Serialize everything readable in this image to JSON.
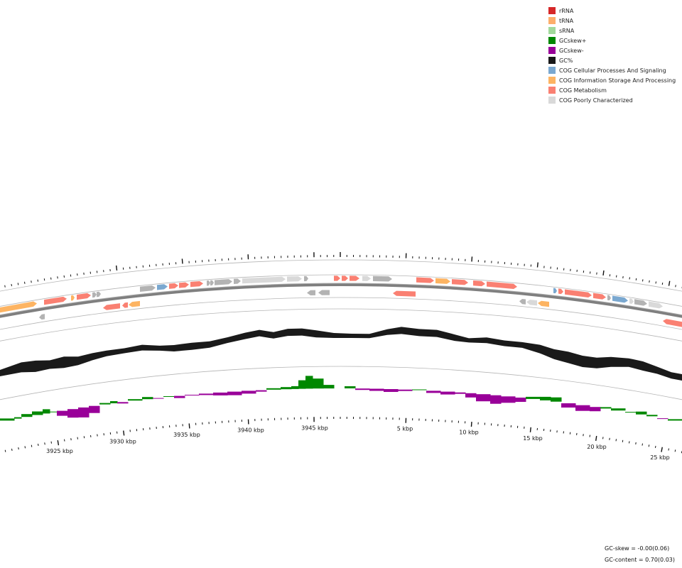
{
  "legend": [
    {
      "label": "rRNA",
      "color": "#d62728"
    },
    {
      "label": "tRNA",
      "color": "#fdae6b"
    },
    {
      "label": "sRNA",
      "color": "#a1d99b"
    },
    {
      "label": "GCskew+",
      "color": "#008800"
    },
    {
      "label": "GCskew-",
      "color": "#990099"
    },
    {
      "label": "GC%",
      "color": "#1a1a1a"
    },
    {
      "label": "COG Cellular Processes And Signaling",
      "color": "#7aa8d0"
    },
    {
      "label": "COG Information Storage And Processing",
      "color": "#fdb462"
    },
    {
      "label": "COG Metabolism",
      "color": "#fa8072"
    },
    {
      "label": "COG Poorly Characterized",
      "color": "#d9d9d9"
    }
  ],
  "axis": {
    "labels": [
      "3925 kbp",
      "3930 kbp",
      "3935 kbp",
      "3940 kbp",
      "3945 kbp",
      "5 kbp",
      "10 kbp",
      "15 kbp",
      "20 kbp",
      "25 kbp"
    ]
  },
  "stats": {
    "gc_skew": "GC-skew = -0.00(0.06)",
    "gc_content": "GC-content = 0.70(0.03)"
  },
  "colors": {
    "metabolism": "#fa8072",
    "info": "#fdb462",
    "cellular": "#7aa8d0",
    "poor": "#d9d9d9",
    "nocog": "#b3b3b3",
    "gc": "#1a1a1a",
    "skew_pos": "#008800",
    "skew_neg": "#990099",
    "backbone": "#7f7f7f"
  }
}
